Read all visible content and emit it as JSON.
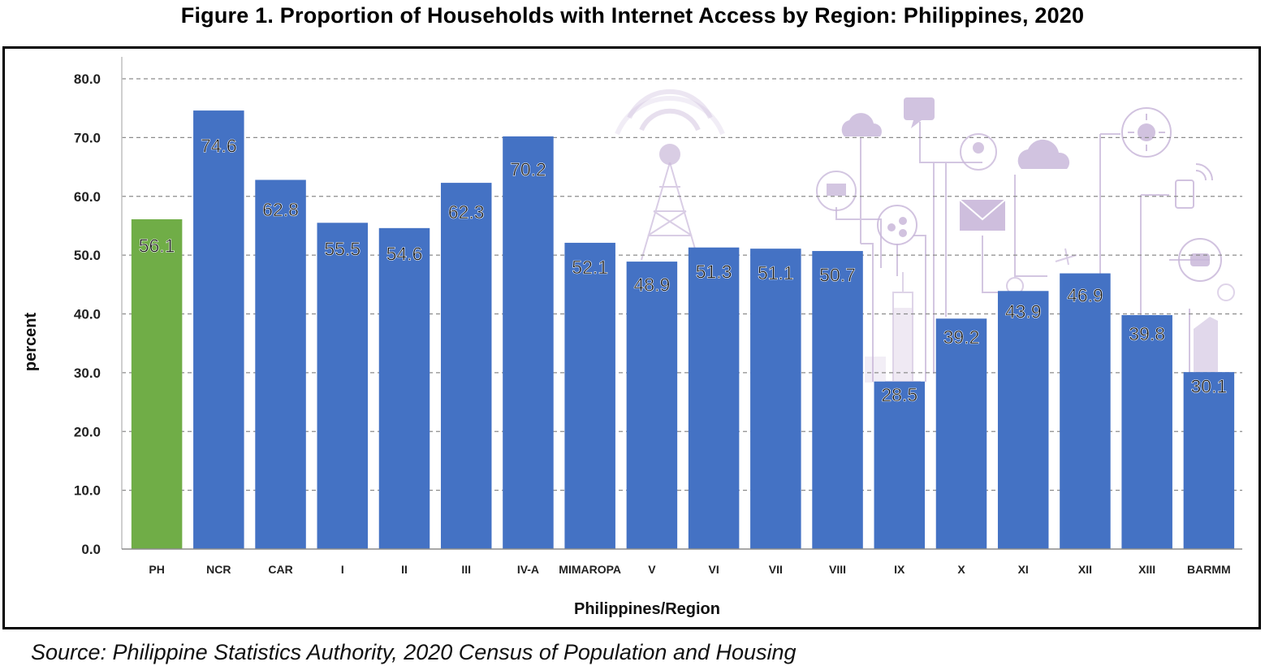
{
  "title": "Figure 1. Proportion of Households with Internet Access by Region: Philippines, 2020",
  "source": "Source:  Philippine Statistics Authority, 2020 Census of Population and Housing",
  "colors": {
    "national": "#70AD47",
    "region": "#4472C4",
    "grid": "#8C8C8C",
    "illustration": "#C9B8DA"
  },
  "chart_data": {
    "type": "bar",
    "title": "Figure 1. Proportion of Households with Internet Access by Region: Philippines, 2020",
    "xlabel": "Philippines/Region",
    "ylabel": "percent",
    "ylim": [
      0,
      80
    ],
    "yticks": [
      "0.0",
      "10.0",
      "20.0",
      "30.0",
      "40.0",
      "50.0",
      "60.0",
      "70.0",
      "80.0"
    ],
    "grid": true,
    "legend": "none",
    "categories": [
      "PH",
      "NCR",
      "CAR",
      "I",
      "II",
      "III",
      "IV-A",
      "MIMAROPA",
      "V",
      "VI",
      "VII",
      "VIII",
      "IX",
      "X",
      "XI",
      "XII",
      "XIII",
      "BARMM"
    ],
    "values": [
      56.1,
      74.6,
      62.8,
      55.5,
      54.6,
      62.3,
      70.2,
      52.1,
      48.9,
      51.3,
      51.1,
      50.7,
      28.5,
      39.2,
      43.9,
      46.9,
      39.8,
      30.1
    ],
    "data_labels": [
      "56.1",
      "74.6",
      "62.8",
      "55.5",
      "54.6",
      "62.3",
      "70.2",
      "52.1",
      "48.9",
      "51.3",
      "51.1",
      "50.7",
      "28.5",
      "39.2",
      "43.9",
      "46.9",
      "39.8",
      "30.1"
    ],
    "bar_colors": [
      "#70AD47",
      "#4472C4",
      "#4472C4",
      "#4472C4",
      "#4472C4",
      "#4472C4",
      "#4472C4",
      "#4472C4",
      "#4472C4",
      "#4472C4",
      "#4472C4",
      "#4472C4",
      "#4472C4",
      "#4472C4",
      "#4472C4",
      "#4472C4",
      "#4472C4",
      "#4472C4"
    ]
  }
}
